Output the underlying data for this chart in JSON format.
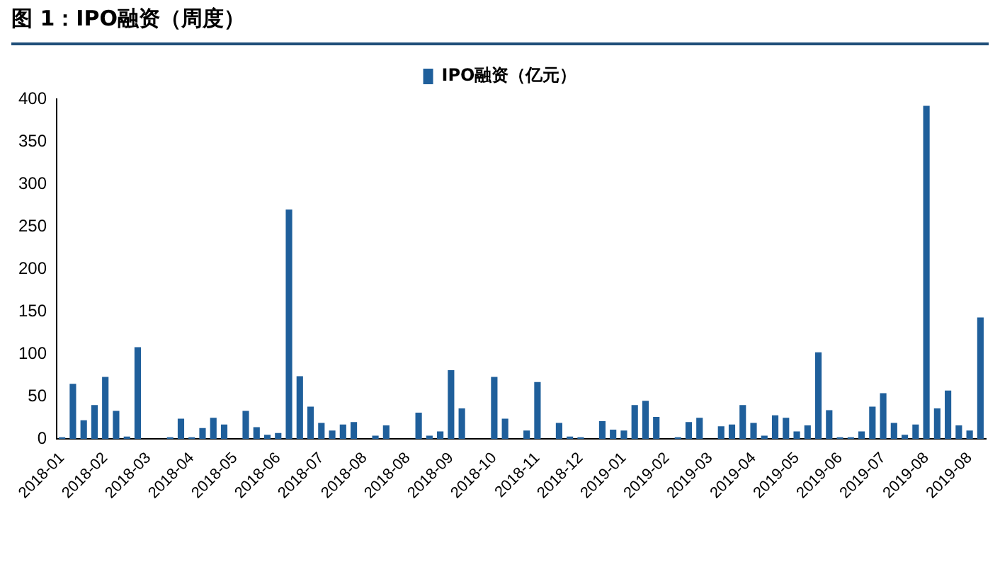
{
  "chart_data": {
    "type": "bar",
    "title": "图 1：IPO融资（周度）",
    "categories": [
      "2018-01",
      null,
      null,
      null,
      "2018-02",
      null,
      null,
      null,
      "2018-03",
      null,
      null,
      null,
      "2018-04",
      null,
      null,
      null,
      "2018-05",
      null,
      null,
      null,
      "2018-06",
      null,
      null,
      null,
      "2018-07",
      null,
      null,
      null,
      "2018-08",
      null,
      null,
      null,
      "2018-08",
      null,
      null,
      null,
      "2018-09",
      null,
      null,
      null,
      "2018-10",
      null,
      null,
      null,
      "2018-11",
      null,
      null,
      null,
      "2018-12",
      null,
      null,
      null,
      "2019-01",
      null,
      null,
      null,
      "2019-02",
      null,
      null,
      null,
      "2019-03",
      null,
      null,
      null,
      "2019-04",
      null,
      null,
      null,
      "2019-05",
      null,
      null,
      null,
      "2019-06",
      null,
      null,
      null,
      "2019-07",
      null,
      null,
      null,
      "2019-08",
      null,
      null,
      null,
      "2019-08",
      null
    ],
    "series": [
      {
        "name": "IPO融资（亿元）",
        "color": "#1f5f9b",
        "values": [
          2,
          65,
          22,
          40,
          73,
          33,
          3,
          108,
          0,
          0,
          2,
          24,
          2,
          13,
          25,
          17,
          0,
          33,
          14,
          5,
          7,
          270,
          74,
          38,
          19,
          10,
          17,
          20,
          0,
          4,
          16,
          0,
          0,
          31,
          4,
          9,
          81,
          36,
          0,
          0,
          73,
          24,
          0,
          10,
          67,
          0,
          19,
          3,
          2,
          0,
          21,
          11,
          10,
          40,
          45,
          26,
          0,
          2,
          20,
          25,
          0,
          15,
          17,
          40,
          19,
          4,
          28,
          25,
          9,
          16,
          102,
          34,
          2,
          2,
          9,
          38,
          54,
          19,
          5,
          17,
          392,
          36,
          57,
          16,
          10,
          143
        ]
      }
    ],
    "ylim": [
      0,
      400
    ],
    "yticks": [
      0,
      50,
      100,
      150,
      200,
      250,
      300,
      350,
      400
    ],
    "grid": false,
    "legend": "top"
  }
}
